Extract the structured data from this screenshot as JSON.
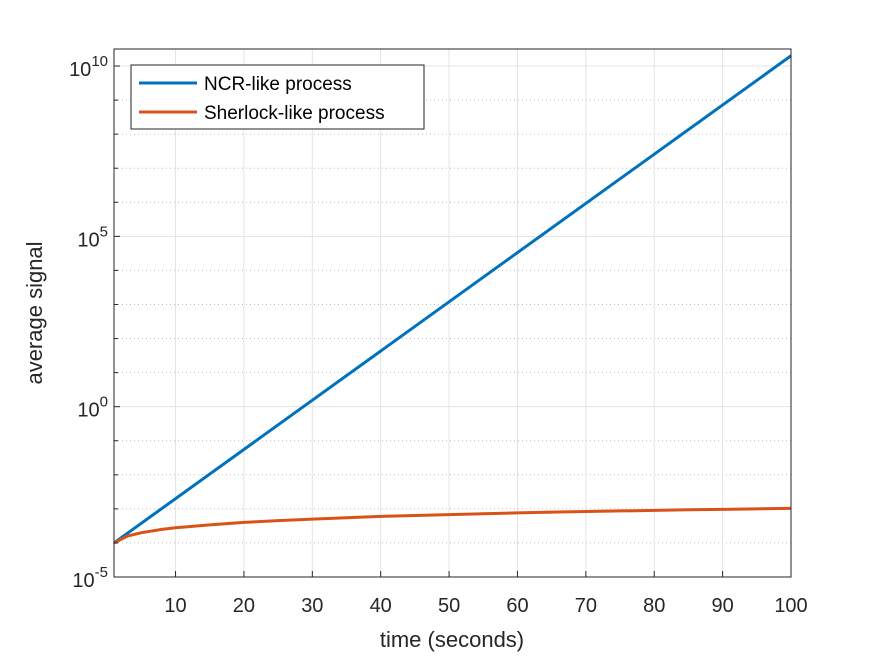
{
  "chart_data": {
    "type": "line",
    "title": "",
    "xlabel": "time (seconds)",
    "ylabel": "average signal",
    "xlim": [
      1,
      100
    ],
    "ylim_exponent": [
      -5,
      10.5
    ],
    "y_scale": "log",
    "x_ticks": [
      10,
      20,
      30,
      40,
      50,
      60,
      70,
      80,
      90,
      100
    ],
    "x_tick_labels": [
      "10",
      "20",
      "30",
      "40",
      "50",
      "60",
      "70",
      "80",
      "90",
      "100"
    ],
    "y_ticks": [
      {
        "exponent": -5,
        "base": "10",
        "sup": "-5"
      },
      {
        "exponent": 0,
        "base": "10",
        "sup": "0"
      },
      {
        "exponent": 5,
        "base": "10",
        "sup": "5"
      },
      {
        "exponent": 10,
        "base": "10",
        "sup": "10"
      }
    ],
    "grid": true,
    "minor_grid": true,
    "legend_position": "top-left",
    "series": [
      {
        "name": "NCR-like process",
        "color": "#0072BD",
        "x": [
          1,
          100
        ],
        "y": [
          0.0001,
          20000000000
        ]
      },
      {
        "name": "Sherlock-like process",
        "color": "#D95319",
        "x": [
          1,
          3,
          5,
          8,
          10,
          15,
          20,
          25,
          30,
          35,
          40,
          45,
          50,
          55,
          60,
          65,
          70,
          75,
          80,
          85,
          90,
          95,
          100
        ],
        "y": [
          0.0001,
          0.00016,
          0.0002,
          0.00025,
          0.00028,
          0.00034,
          0.0004,
          0.00045,
          0.0005,
          0.00055,
          0.0006,
          0.00064,
          0.00068,
          0.00072,
          0.00076,
          0.0008,
          0.00084,
          0.00087,
          0.0009,
          0.00094,
          0.00097,
          0.001,
          0.00103
        ]
      }
    ]
  }
}
